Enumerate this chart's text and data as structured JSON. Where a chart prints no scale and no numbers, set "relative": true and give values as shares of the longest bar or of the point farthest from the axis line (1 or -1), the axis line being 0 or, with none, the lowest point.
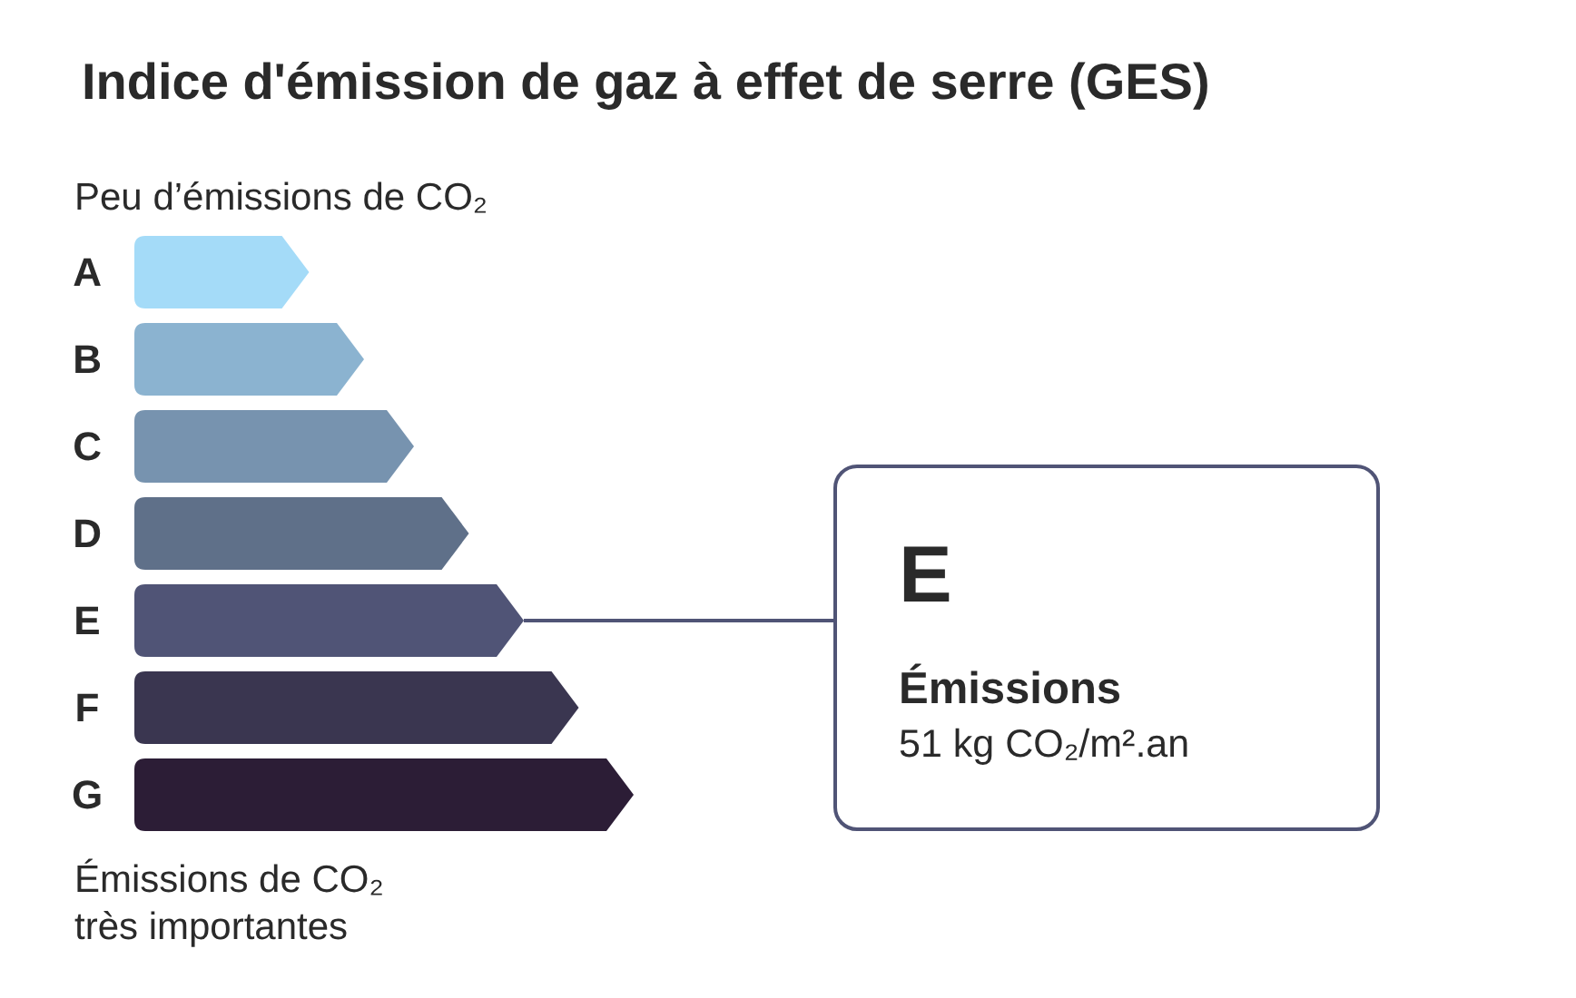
{
  "chart_data": {
    "type": "bar",
    "orientation": "horizontal",
    "relative": true,
    "title": "Indice d'émission de gaz à effet de serre (GES)",
    "categories": [
      "A",
      "B",
      "C",
      "D",
      "E",
      "F",
      "G"
    ],
    "values": [
      0.35,
      0.46,
      0.56,
      0.67,
      0.78,
      0.89,
      1
    ],
    "colors": [
      "#a4dbf8",
      "#8bb3d0",
      "#7793af",
      "#5f7089",
      "#505476",
      "#3a3650",
      "#2c1d36"
    ],
    "annotations": [
      "Peu d’émissions de CO₂",
      "Émissions de CO₂ très importantes",
      {
        "text": "E",
        "x": 0.78,
        "y": "E"
      },
      "Émissions",
      "51 kg CO₂/m².an"
    ]
  }
}
